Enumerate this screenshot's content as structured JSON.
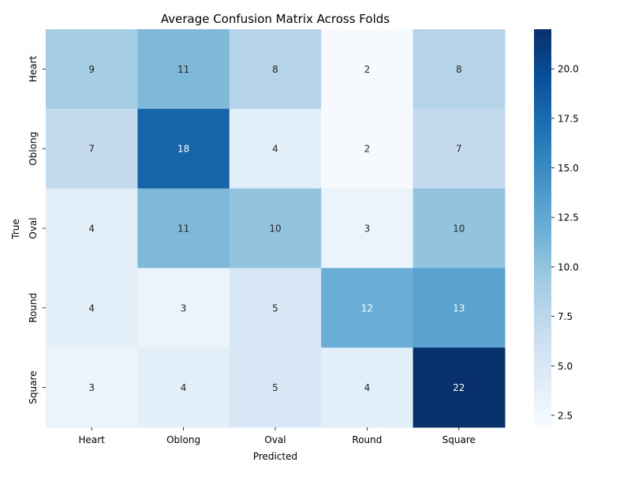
{
  "chart_data": {
    "type": "heatmap",
    "title": "Average Confusion Matrix Across Folds",
    "xlabel": "Predicted",
    "ylabel": "True",
    "x_categories": [
      "Heart",
      "Oblong",
      "Oval",
      "Round",
      "Square"
    ],
    "y_categories": [
      "Heart",
      "Oblong",
      "Oval",
      "Round",
      "Square"
    ],
    "values": [
      [
        9,
        11,
        8,
        2,
        8
      ],
      [
        7,
        18,
        4,
        2,
        7
      ],
      [
        4,
        11,
        10,
        3,
        10
      ],
      [
        4,
        3,
        5,
        12,
        13
      ],
      [
        3,
        4,
        5,
        4,
        22
      ]
    ],
    "colorbar": {
      "min": 1.9,
      "max": 22,
      "ticks": [
        2.5,
        5.0,
        7.5,
        10.0,
        12.5,
        15.0,
        17.5,
        20.0
      ],
      "tick_labels": [
        "2.5",
        "5.0",
        "7.5",
        "10.0",
        "12.5",
        "15.0",
        "17.5",
        "20.0"
      ]
    },
    "colormap": "Blues",
    "annotations": true
  }
}
